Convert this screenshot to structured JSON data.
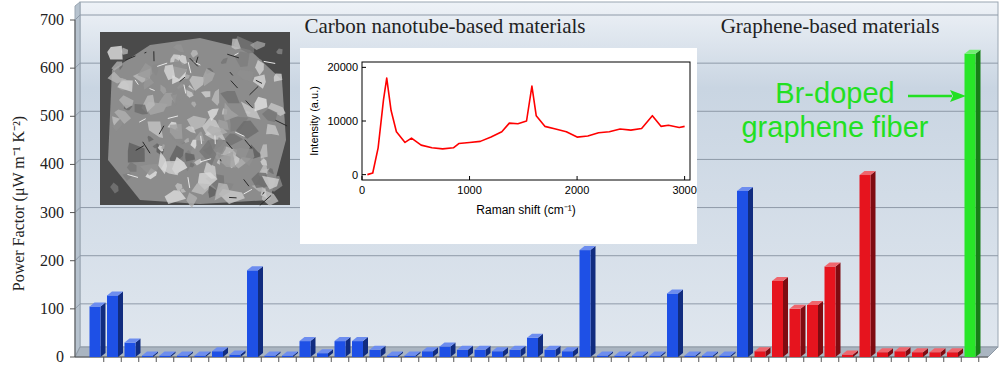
{
  "chart_data": [
    {
      "type": "bar",
      "y_label": "Power Factor (μW m⁻¹ K⁻²)",
      "annotations": [
        "Carbon nanotube-based materials",
        "Graphene-based materials",
        "Br-doped\ngraphene fiber"
      ],
      "categories": [
        null,
        null,
        null,
        null,
        null,
        null,
        null,
        null,
        null,
        null,
        null,
        null,
        null,
        null,
        null,
        null,
        null,
        null,
        null,
        null,
        null,
        null,
        null,
        null,
        null,
        null,
        null,
        null,
        null,
        null,
        null,
        null,
        null,
        null,
        null,
        null,
        null,
        null,
        null,
        null,
        null,
        null,
        null,
        null,
        null,
        null,
        null,
        null,
        null,
        null,
        null
      ],
      "values": [
        105,
        128,
        30,
        3,
        3,
        3,
        3,
        12,
        5,
        180,
        3,
        3,
        33,
        8,
        33,
        33,
        15,
        3,
        3,
        12,
        22,
        15,
        15,
        12,
        15,
        40,
        15,
        12,
        222,
        3,
        3,
        3,
        3,
        132,
        3,
        3,
        3,
        345,
        12,
        158,
        100,
        108,
        188,
        5,
        378,
        10,
        12,
        10,
        10,
        10,
        630
      ],
      "colors": [
        "#1e50e6",
        "#1e50e6",
        "#1e50e6",
        "#1e50e6",
        "#1e50e6",
        "#1e50e6",
        "#1e50e6",
        "#1e50e6",
        "#1e50e6",
        "#1e50e6",
        "#1e50e6",
        "#1e50e6",
        "#1e50e6",
        "#1e50e6",
        "#1e50e6",
        "#1e50e6",
        "#1e50e6",
        "#1e50e6",
        "#1e50e6",
        "#1e50e6",
        "#1e50e6",
        "#1e50e6",
        "#1e50e6",
        "#1e50e6",
        "#1e50e6",
        "#1e50e6",
        "#1e50e6",
        "#1e50e6",
        "#1e50e6",
        "#1e50e6",
        "#1e50e6",
        "#1e50e6",
        "#1e50e6",
        "#1e50e6",
        "#1e50e6",
        "#1e50e6",
        "#1e50e6",
        "#1e50e6",
        "#e6141e",
        "#e6141e",
        "#e6141e",
        "#e6141e",
        "#e6141e",
        "#e6141e",
        "#e6141e",
        "#e6141e",
        "#e6141e",
        "#e6141e",
        "#e6141e",
        "#e6141e",
        "#28e628"
      ],
      "ylim": [
        0,
        700
      ],
      "yticks": [
        0,
        100,
        200,
        300,
        400,
        500,
        600,
        700
      ],
      "grid": true,
      "tick_labels": "y"
    },
    {
      "type": "line",
      "x_label": "Raman shift (cm⁻¹)",
      "y_label": "Intensity (a.u.)",
      "x": [
        50,
        100,
        150,
        200,
        230,
        270,
        320,
        400,
        460,
        550,
        650,
        750,
        850,
        900,
        1000,
        1100,
        1200,
        1300,
        1370,
        1450,
        1530,
        1580,
        1620,
        1700,
        1800,
        1900,
        2000,
        2100,
        2200,
        2300,
        2400,
        2500,
        2600,
        2700,
        2780,
        2850,
        2950,
        3000
      ],
      "values": [
        0,
        300,
        5000,
        14000,
        18000,
        12000,
        8000,
        6000,
        6800,
        5500,
        5000,
        4800,
        5000,
        5800,
        6000,
        6200,
        7000,
        8000,
        9600,
        9500,
        10000,
        16500,
        11000,
        9000,
        8500,
        8000,
        7000,
        7200,
        7800,
        8000,
        8500,
        8300,
        8600,
        11000,
        9000,
        9200,
        8800,
        9000
      ],
      "color": "#ff0000",
      "xlim": [
        0,
        3050
      ],
      "xticks": [
        0,
        1000,
        2000,
        3000
      ],
      "ylim": [
        -1000,
        21000
      ],
      "yticks": [
        0,
        10000,
        20000
      ]
    }
  ]
}
